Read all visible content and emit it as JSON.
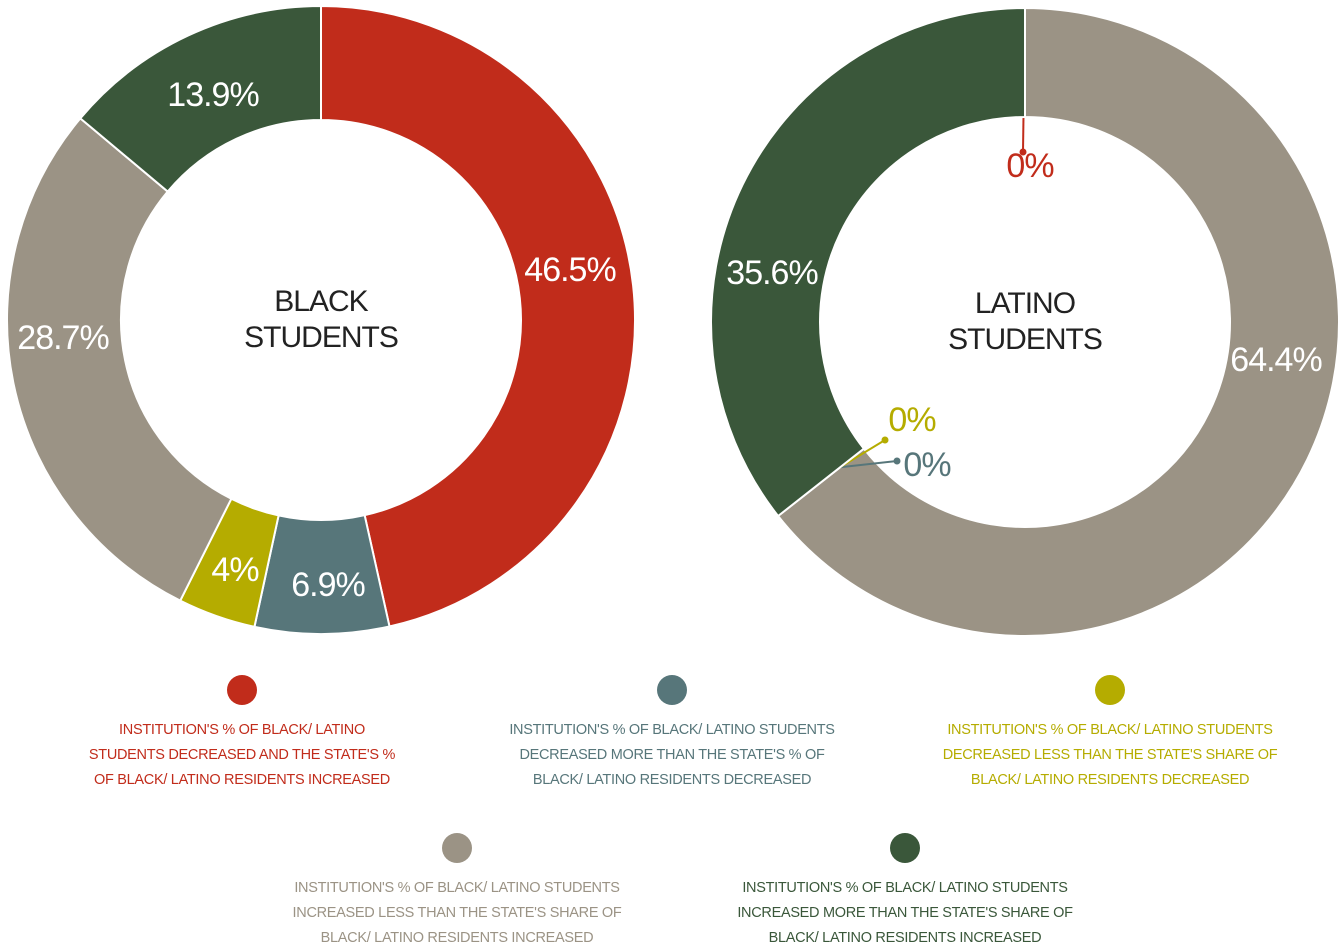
{
  "chart_data": [
    {
      "type": "donut",
      "title_lines": [
        "BLACK",
        "STUDENTS"
      ],
      "values": [
        46.5,
        6.9,
        4,
        28.7,
        13.9
      ],
      "value_labels": [
        "46.5%",
        "6.9%",
        "4%",
        "28.7%",
        "13.9%"
      ],
      "colors": [
        "#c12c1b",
        "#57767a",
        "#b5ac00",
        "#9b9385",
        "#3a573a"
      ]
    },
    {
      "type": "donut",
      "title_lines": [
        "LATINO",
        "STUDENTS"
      ],
      "values": [
        0,
        64.4,
        0,
        0,
        35.6
      ],
      "value_labels": [
        "0%",
        "64.4%",
        "0%",
        "0%",
        "35.6%"
      ],
      "colors": [
        "#c12c1b",
        "#9b9385",
        "#57767a",
        "#b5ac00",
        "#3a573a"
      ]
    }
  ],
  "legend": {
    "items": [
      {
        "color": "#c12c1b",
        "lines": [
          "INSTITUTION'S % OF BLACK/ LATINO",
          "STUDENTS DECREASED AND THE STATE'S %",
          "OF BLACK/ LATINO RESIDENTS INCREASED"
        ]
      },
      {
        "color": "#57767a",
        "lines": [
          "INSTITUTION'S % OF  BLACK/ LATINO STUDENTS",
          "DECREASED MORE THAN THE STATE'S % OF",
          "BLACK/ LATINO RESIDENTS DECREASED"
        ]
      },
      {
        "color": "#b5ac00",
        "lines": [
          "INSTITUTION'S % OF BLACK/ LATINO STUDENTS",
          "DECREASED LESS THAN THE STATE'S SHARE OF",
          "BLACK/ LATINO RESIDENTS DECREASED"
        ]
      },
      {
        "color": "#9b9385",
        "lines": [
          "INSTITUTION'S % OF BLACK/ LATINO STUDENTS",
          "INCREASED LESS THAN THE STATE'S SHARE OF",
          "BLACK/ LATINO RESIDENTS INCREASED"
        ]
      },
      {
        "color": "#3a573a",
        "lines": [
          "INSTITUTION'S % OF BLACK/ LATINO STUDENTS",
          "INCREASED MORE THAN THE STATE'S SHARE OF",
          "BLACK/ LATINO RESIDENTS INCREASED"
        ]
      }
    ]
  }
}
